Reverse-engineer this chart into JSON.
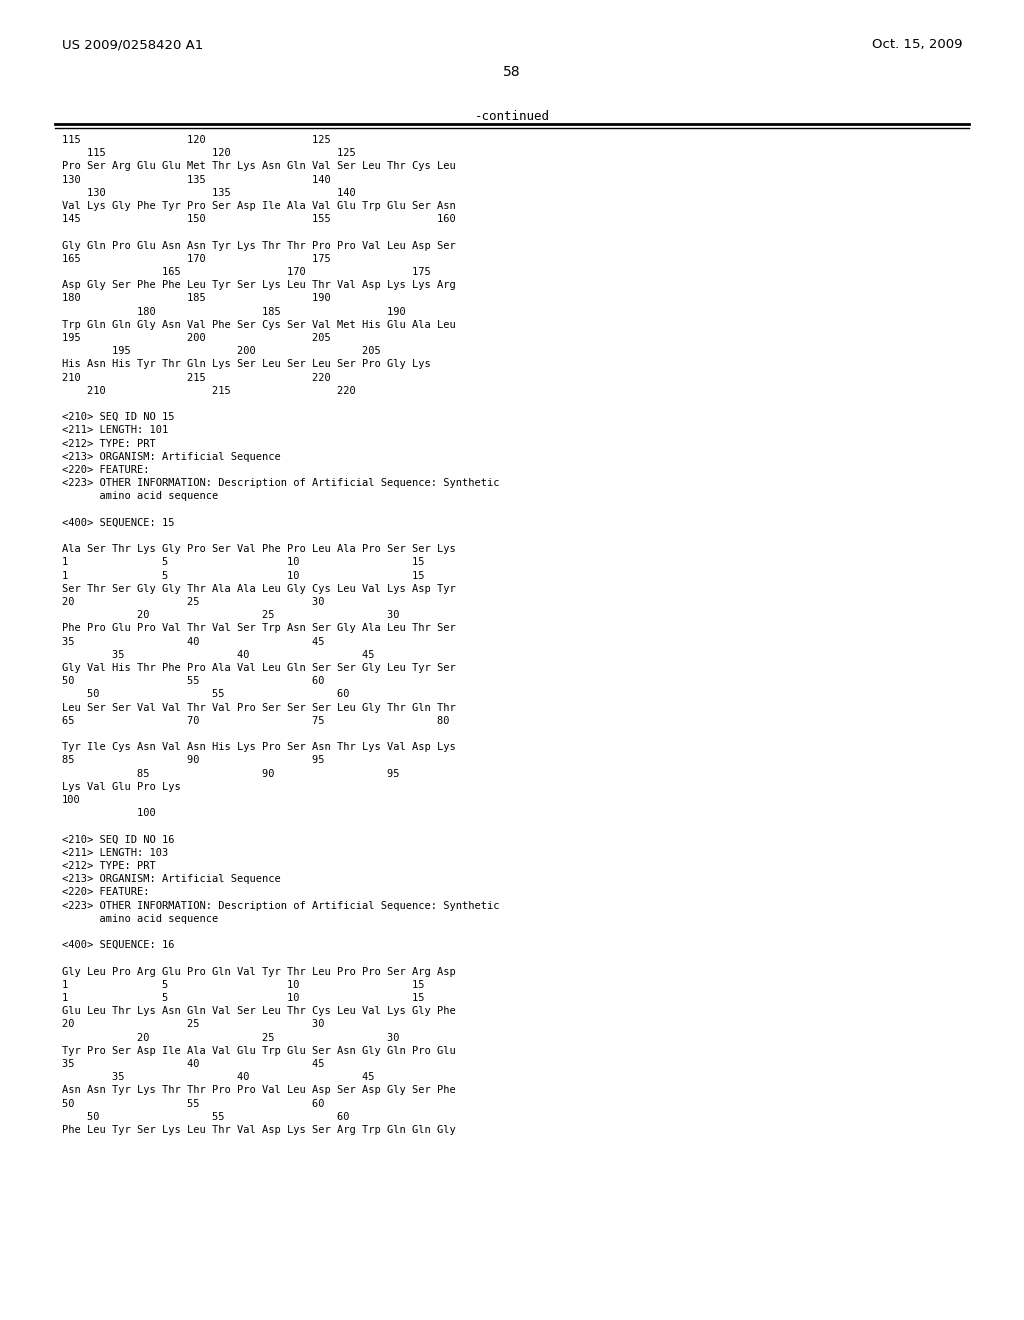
{
  "header_left": "US 2009/0258420 A1",
  "header_right": "Oct. 15, 2009",
  "page_number": "58",
  "continued_label": "-continued",
  "background_color": "#ffffff",
  "text_color": "#000000",
  "content_lines": [
    "115                 120                 125",
    "    115                 120                 125",
    "Pro Ser Arg Glu Glu Met Thr Lys Asn Gln Val Ser Leu Thr Cys Leu",
    "130                 135                 140",
    "    130                 135                 140",
    "Val Lys Gly Phe Tyr Pro Ser Asp Ile Ala Val Glu Trp Glu Ser Asn",
    "145                 150                 155                 160",
    "",
    "Gly Gln Pro Glu Asn Asn Tyr Lys Thr Thr Pro Pro Val Leu Asp Ser",
    "165                 170                 175",
    "                165                 170                 175",
    "Asp Gly Ser Phe Phe Leu Tyr Ser Lys Leu Thr Val Asp Lys Lys Arg",
    "180                 185                 190",
    "            180                 185                 190",
    "Trp Gln Gln Gly Asn Val Phe Ser Cys Ser Val Met His Glu Ala Leu",
    "195                 200                 205",
    "        195                 200                 205",
    "His Asn His Tyr Thr Gln Lys Ser Leu Ser Leu Ser Pro Gly Lys",
    "210                 215                 220",
    "    210                 215                 220",
    "",
    "<210> SEQ ID NO 15",
    "<211> LENGTH: 101",
    "<212> TYPE: PRT",
    "<213> ORGANISM: Artificial Sequence",
    "<220> FEATURE:",
    "<223> OTHER INFORMATION: Description of Artificial Sequence: Synthetic",
    "      amino acid sequence",
    "",
    "<400> SEQUENCE: 15",
    "",
    "Ala Ser Thr Lys Gly Pro Ser Val Phe Pro Leu Ala Pro Ser Ser Lys",
    "1               5                   10                  15",
    "1               5                   10                  15",
    "Ser Thr Ser Gly Gly Thr Ala Ala Leu Gly Cys Leu Val Lys Asp Tyr",
    "20                  25                  30",
    "            20                  25                  30",
    "Phe Pro Glu Pro Val Thr Val Ser Trp Asn Ser Gly Ala Leu Thr Ser",
    "35                  40                  45",
    "        35                  40                  45",
    "Gly Val His Thr Phe Pro Ala Val Leu Gln Ser Ser Gly Leu Tyr Ser",
    "50                  55                  60",
    "    50                  55                  60",
    "Leu Ser Ser Val Val Thr Val Pro Ser Ser Ser Leu Gly Thr Gln Thr",
    "65                  70                  75                  80",
    "",
    "Tyr Ile Cys Asn Val Asn His Lys Pro Ser Asn Thr Lys Val Asp Lys",
    "85                  90                  95",
    "            85                  90                  95",
    "Lys Val Glu Pro Lys",
    "100",
    "            100",
    "",
    "<210> SEQ ID NO 16",
    "<211> LENGTH: 103",
    "<212> TYPE: PRT",
    "<213> ORGANISM: Artificial Sequence",
    "<220> FEATURE:",
    "<223> OTHER INFORMATION: Description of Artificial Sequence: Synthetic",
    "      amino acid sequence",
    "",
    "<400> SEQUENCE: 16",
    "",
    "Gly Leu Pro Arg Glu Pro Gln Val Tyr Thr Leu Pro Pro Ser Arg Asp",
    "1               5                   10                  15",
    "1               5                   10                  15",
    "Glu Leu Thr Lys Asn Gln Val Ser Leu Thr Cys Leu Val Lys Gly Phe",
    "20                  25                  30",
    "            20                  25                  30",
    "Tyr Pro Ser Asp Ile Ala Val Glu Trp Glu Ser Asn Gly Gln Pro Glu",
    "35                  40                  45",
    "        35                  40                  45",
    "Asn Asn Tyr Lys Thr Thr Pro Pro Val Leu Asp Ser Asp Gly Ser Phe",
    "50                  55                  60",
    "    50                  55                  60",
    "Phe Leu Tyr Ser Lys Leu Thr Val Asp Lys Ser Arg Trp Gln Gln Gly"
  ]
}
